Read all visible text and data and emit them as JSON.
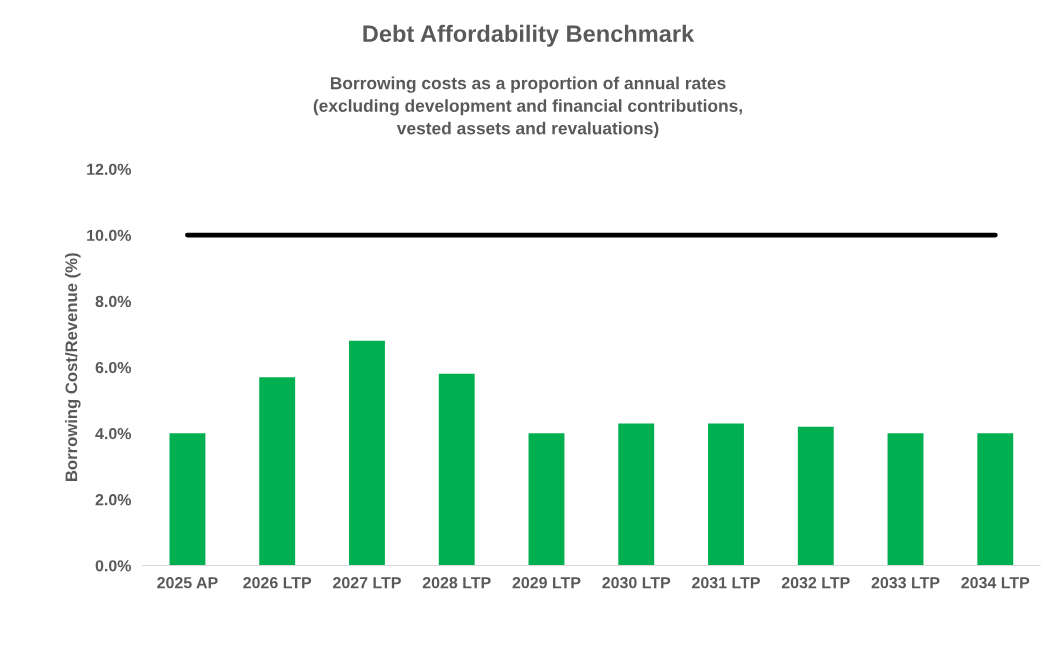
{
  "chart_data": {
    "type": "bar",
    "title": "Debt Affordability Benchmark",
    "subtitle": "Borrowing costs as a proportion of annual rates\n(excluding development and financial contributions,\nvested assets and revaluations)",
    "ylabel": "Borrowing Cost/Revenue (%)",
    "categories": [
      "2025 AP",
      "2026 LTP",
      "2027 LTP",
      "2028 LTP",
      "2029 LTP",
      "2030 LTP",
      "2031 LTP",
      "2032 LTP",
      "2033 LTP",
      "2034 LTP"
    ],
    "values": [
      4.0,
      5.7,
      6.8,
      5.8,
      4.0,
      4.3,
      4.3,
      4.2,
      4.0,
      4.0
    ],
    "color": "#00b050",
    "ylim": [
      0,
      12
    ],
    "yticks": [
      {
        "value": 0,
        "label": "0.0%"
      },
      {
        "value": 2,
        "label": "2.0%"
      },
      {
        "value": 4,
        "label": "4.0%"
      },
      {
        "value": 6,
        "label": "6.0%"
      },
      {
        "value": 8,
        "label": "8.0%"
      },
      {
        "value": 10,
        "label": "10.0%"
      },
      {
        "value": 12,
        "label": "12.0%"
      }
    ],
    "ref_lines": [
      {
        "axis": "y",
        "value": 10,
        "color": "#000000",
        "line_style": "solid"
      }
    ],
    "grid": false,
    "legend": false
  }
}
